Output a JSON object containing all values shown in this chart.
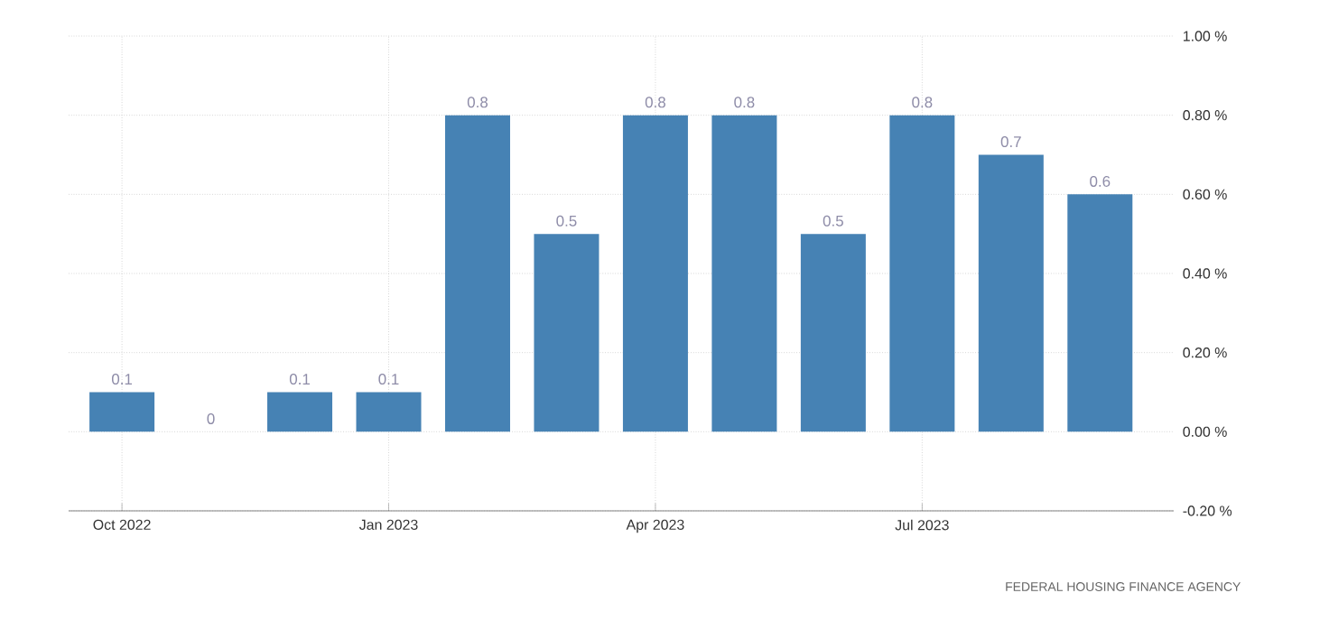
{
  "chart_data": {
    "type": "bar",
    "categories": [
      "Oct 2022",
      null,
      null,
      "Jan 2023",
      null,
      null,
      "Apr 2023",
      null,
      null,
      "Jul 2023",
      null,
      null
    ],
    "values": [
      0.1,
      0,
      0.1,
      0.1,
      0.8,
      0.5,
      0.8,
      0.8,
      0.5,
      0.8,
      0.7,
      0.6
    ],
    "color": "#4682b4",
    "ylim": [
      -0.2,
      1.0
    ],
    "yticks": [
      {
        "value": -0.2,
        "label": "-0.20 %"
      },
      {
        "value": 0,
        "label": "0.00 %"
      },
      {
        "value": 0.2,
        "label": "0.20 %"
      },
      {
        "value": 0.4,
        "label": "0.40 %"
      },
      {
        "value": 0.6,
        "label": "0.60 %"
      },
      {
        "value": 0.8,
        "label": "0.80 %"
      },
      {
        "value": 1.0,
        "label": "1.00 %"
      }
    ],
    "grid": true,
    "data_labels": true,
    "annotations": [
      "FEDERAL HOUSING FINANCE AGENCY"
    ]
  }
}
